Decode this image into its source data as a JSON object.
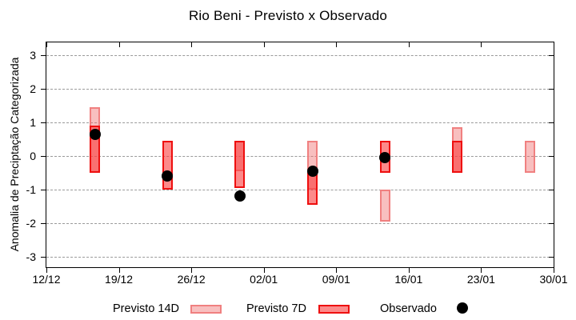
{
  "title": "Rio Beni - Previsto x Observado",
  "chart_data": {
    "type": "bar",
    "subtype": "range-bars-with-points",
    "title": "Rio Beni - Previsto x Observado",
    "xlabel": "",
    "ylabel": "Anomalia de Preciptação Categorizada",
    "ylim": [
      -3.31,
      3.38
    ],
    "y_ticks": [
      3,
      2,
      1,
      0,
      -1,
      -2,
      -3
    ],
    "x_ticks": [
      "12/12",
      "19/12",
      "26/12",
      "02/01",
      "09/01",
      "16/01",
      "23/01",
      "30/01"
    ],
    "grid": "horizontal-dashed",
    "grid_color": "#9a9a9a",
    "legend_position": "bottom",
    "cluster_dates": [
      "17/12",
      "24/12",
      "31/12",
      "07/01",
      "14/01",
      "21/01",
      "28/01"
    ],
    "series": [
      {
        "name": "Previsto 14D",
        "type": "range",
        "fill_color": "rgba(240,110,110,0.44)",
        "border_color": "#f08080",
        "data": [
          {
            "date": "17/12",
            "lo": -0.5,
            "hi": 1.45
          },
          {
            "date": "24/12",
            "lo": null,
            "hi": null
          },
          {
            "date": "31/12",
            "lo": -0.45,
            "hi": 0.45
          },
          {
            "date": "07/01",
            "lo": -1.0,
            "hi": 0.45
          },
          {
            "date": "14/01",
            "lo": -1.95,
            "hi": -1.0
          },
          {
            "date": "21/01",
            "lo": -0.5,
            "hi": 0.85
          },
          {
            "date": "28/01",
            "lo": -0.5,
            "hi": 0.45
          }
        ]
      },
      {
        "name": "Previsto 7D",
        "type": "range",
        "fill_color": "rgba(250,60,60,0.60)",
        "border_color": "#ee0f0f",
        "data": [
          {
            "date": "17/12",
            "lo": -0.5,
            "hi": 0.9
          },
          {
            "date": "24/12",
            "lo": -1.0,
            "hi": 0.45
          },
          {
            "date": "31/12",
            "lo": -0.95,
            "hi": 0.45
          },
          {
            "date": "07/01",
            "lo": -1.45,
            "hi": -0.5
          },
          {
            "date": "14/01",
            "lo": -0.5,
            "hi": 0.45
          },
          {
            "date": "21/01",
            "lo": -0.5,
            "hi": 0.45
          },
          {
            "date": "28/01",
            "lo": null,
            "hi": null
          }
        ]
      },
      {
        "name": "Observado",
        "type": "point",
        "color": "#000000",
        "data": [
          {
            "date": "17/12",
            "value": 0.65
          },
          {
            "date": "24/12",
            "value": -0.6
          },
          {
            "date": "31/12",
            "value": -1.2
          },
          {
            "date": "07/01",
            "value": -0.45
          },
          {
            "date": "14/01",
            "value": -0.05
          },
          {
            "date": "21/01",
            "value": null
          },
          {
            "date": "28/01",
            "value": null
          }
        ]
      }
    ]
  },
  "legend": {
    "items": [
      {
        "label": "Previsto 14D",
        "marker": "pink-box"
      },
      {
        "label": "Previsto 7D",
        "marker": "red-box"
      },
      {
        "label": "Observado",
        "marker": "black-dot"
      }
    ]
  }
}
